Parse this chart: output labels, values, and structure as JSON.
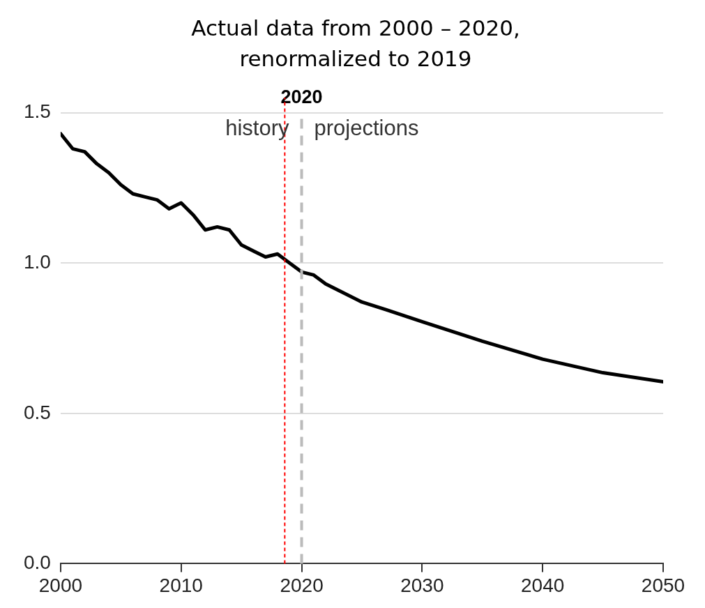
{
  "chart_data": {
    "type": "line",
    "title": "Actual data from 2000 – 2020, renormalized to 2019",
    "series": [
      {
        "color": "#000000",
        "x": [
          2000,
          2001,
          2002,
          2003,
          2004,
          2005,
          2006,
          2007,
          2008,
          2009,
          2010,
          2011,
          2012,
          2013,
          2014,
          2015,
          2016,
          2017,
          2018,
          2019,
          2020,
          2021,
          2022,
          2025,
          2027,
          2030,
          2035,
          2040,
          2045,
          2050
        ],
        "values": [
          1.43,
          1.38,
          1.37,
          1.33,
          1.3,
          1.26,
          1.23,
          1.22,
          1.21,
          1.18,
          1.2,
          1.16,
          1.11,
          1.12,
          1.11,
          1.06,
          1.04,
          1.02,
          1.03,
          1.0,
          0.97,
          0.96,
          0.93,
          0.87,
          0.845,
          0.805,
          0.74,
          0.68,
          0.635,
          0.605
        ]
      }
    ],
    "xlim": [
      2000,
      2050
    ],
    "xticks": [
      2000,
      2010,
      2020,
      2030,
      2040,
      2050
    ],
    "ylim": [
      0,
      1.55
    ],
    "yticks": [
      {
        "value": 0,
        "label": "0.0"
      },
      1.5,
      {
        "value": 1,
        "label": "1.0"
      },
      0.5
    ],
    "grid": "y",
    "legend": false,
    "marker": "none",
    "line_style": "solid",
    "ref_lines": [
      {
        "axis": "x",
        "value": 2020,
        "label": "2020",
        "color": "#bbbbbb",
        "line_style": "dashed"
      },
      {
        "axis": "x",
        "value": 2018.6,
        "color": "#ff0000",
        "line_style": "dotted"
      }
    ],
    "annotations": [
      "history",
      "projections"
    ]
  }
}
